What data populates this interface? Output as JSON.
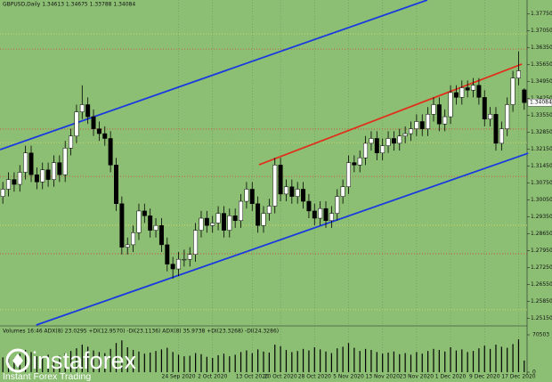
{
  "chart_data": [
    {
      "type": "candlestick",
      "title": "GBPUSD,Daily 1.34613 1.34675 1.33788 1.34084",
      "categories": [
        null,
        null,
        null,
        null,
        null,
        null,
        null,
        null,
        null,
        null,
        null,
        null,
        null,
        null,
        null,
        null,
        null,
        null,
        null,
        null,
        null,
        null,
        null,
        null,
        null,
        null,
        null,
        null,
        null,
        null,
        null,
        "24 Sep 2020",
        null,
        null,
        null,
        null,
        null,
        "2 Oct 2020",
        null,
        null,
        null,
        null,
        null,
        null,
        "13 Oct 2020",
        null,
        null,
        null,
        null,
        "20 Oct 2020",
        null,
        null,
        null,
        null,
        null,
        "28 Oct 2020",
        null,
        null,
        null,
        null,
        null,
        "5 Nov 2020",
        null,
        null,
        null,
        null,
        null,
        "13 Nov 2020",
        null,
        null,
        null,
        null,
        null,
        "23 Nov 2020",
        null,
        null,
        null,
        null,
        null,
        "1 Dec 2020",
        null,
        null,
        null,
        null,
        null,
        "9 Dec 2020",
        null,
        null,
        null,
        null,
        null,
        "17 Dec 2020",
        null
      ],
      "series": [
        {
          "name": "GBPUSD",
          "up_color": "#ffffff",
          "down_color": "#000000",
          "wick_color": "#000000",
          "ohlc": [
            [
              1.302,
              1.308,
              1.299,
              1.305
            ],
            [
              1.305,
              1.312,
              1.302,
              1.309
            ],
            [
              1.309,
              1.312,
              1.304,
              1.307
            ],
            [
              1.307,
              1.315,
              1.304,
              1.312
            ],
            [
              1.312,
              1.323,
              1.309,
              1.32
            ],
            [
              1.32,
              1.323,
              1.308,
              1.311
            ],
            [
              1.311,
              1.314,
              1.305,
              1.308
            ],
            [
              1.308,
              1.316,
              1.305,
              1.313
            ],
            [
              1.313,
              1.316,
              1.306,
              1.309
            ],
            [
              1.309,
              1.319,
              1.306,
              1.316
            ],
            [
              1.316,
              1.319,
              1.308,
              1.311
            ],
            [
              1.311,
              1.325,
              1.308,
              1.322
            ],
            [
              1.322,
              1.33,
              1.319,
              1.327
            ],
            [
              1.327,
              1.34,
              1.324,
              1.337
            ],
            [
              1.337,
              1.348,
              1.334,
              1.34
            ],
            [
              1.34,
              1.343,
              1.332,
              1.335
            ],
            [
              1.335,
              1.338,
              1.327,
              1.33
            ],
            [
              1.33,
              1.333,
              1.325,
              1.328
            ],
            [
              1.328,
              1.331,
              1.323,
              1.326
            ],
            [
              1.326,
              1.329,
              1.312,
              1.315
            ],
            [
              1.315,
              1.318,
              1.296,
              1.299
            ],
            [
              1.299,
              1.302,
              1.278,
              1.281
            ],
            [
              1.281,
              1.285,
              1.278,
              1.282
            ],
            [
              1.282,
              1.29,
              1.279,
              1.287
            ],
            [
              1.287,
              1.299,
              1.284,
              1.296
            ],
            [
              1.296,
              1.299,
              1.291,
              1.294
            ],
            [
              1.294,
              1.297,
              1.285,
              1.288
            ],
            [
              1.288,
              1.293,
              1.285,
              1.29
            ],
            [
              1.29,
              1.293,
              1.279,
              1.282
            ],
            [
              1.282,
              1.285,
              1.271,
              1.274
            ],
            [
              1.274,
              1.277,
              1.268,
              1.272
            ],
            [
              1.272,
              1.279,
              1.269,
              1.276
            ],
            [
              1.276,
              1.28,
              1.273,
              1.276
            ],
            [
              1.276,
              1.281,
              1.273,
              1.278
            ],
            [
              1.278,
              1.291,
              1.275,
              1.288
            ],
            [
              1.288,
              1.296,
              1.285,
              1.293
            ],
            [
              1.293,
              1.296,
              1.287,
              1.29
            ],
            [
              1.29,
              1.294,
              1.287,
              1.291
            ],
            [
              1.291,
              1.298,
              1.288,
              1.295
            ],
            [
              1.295,
              1.298,
              1.285,
              1.288
            ],
            [
              1.288,
              1.297,
              1.285,
              1.294
            ],
            [
              1.294,
              1.297,
              1.289,
              1.292
            ],
            [
              1.292,
              1.303,
              1.289,
              1.3
            ],
            [
              1.3,
              1.308,
              1.297,
              1.305
            ],
            [
              1.305,
              1.308,
              1.296,
              1.299
            ],
            [
              1.299,
              1.302,
              1.287,
              1.29
            ],
            [
              1.29,
              1.298,
              1.287,
              1.295
            ],
            [
              1.295,
              1.301,
              1.292,
              1.298
            ],
            [
              1.298,
              1.318,
              1.295,
              1.315
            ],
            [
              1.315,
              1.318,
              1.3,
              1.303
            ],
            [
              1.303,
              1.309,
              1.3,
              1.306
            ],
            [
              1.306,
              1.309,
              1.299,
              1.302
            ],
            [
              1.302,
              1.308,
              1.299,
              1.305
            ],
            [
              1.305,
              1.308,
              1.297,
              1.3
            ],
            [
              1.3,
              1.303,
              1.293,
              1.296
            ],
            [
              1.296,
              1.299,
              1.29,
              1.293
            ],
            [
              1.293,
              1.3,
              1.29,
              1.297
            ],
            [
              1.297,
              1.3,
              1.289,
              1.292
            ],
            [
              1.292,
              1.298,
              1.289,
              1.295
            ],
            [
              1.295,
              1.305,
              1.292,
              1.302
            ],
            [
              1.302,
              1.309,
              1.299,
              1.306
            ],
            [
              1.306,
              1.319,
              1.303,
              1.316
            ],
            [
              1.316,
              1.319,
              1.312,
              1.315
            ],
            [
              1.315,
              1.321,
              1.312,
              1.318
            ],
            [
              1.318,
              1.327,
              1.315,
              1.324
            ],
            [
              1.324,
              1.329,
              1.321,
              1.326
            ],
            [
              1.326,
              1.329,
              1.317,
              1.32
            ],
            [
              1.32,
              1.326,
              1.317,
              1.323
            ],
            [
              1.323,
              1.329,
              1.32,
              1.326
            ],
            [
              1.326,
              1.329,
              1.321,
              1.324
            ],
            [
              1.324,
              1.33,
              1.321,
              1.327
            ],
            [
              1.327,
              1.331,
              1.324,
              1.328
            ],
            [
              1.328,
              1.333,
              1.325,
              1.33
            ],
            [
              1.33,
              1.336,
              1.327,
              1.333
            ],
            [
              1.333,
              1.336,
              1.327,
              1.33
            ],
            [
              1.33,
              1.339,
              1.327,
              1.336
            ],
            [
              1.336,
              1.343,
              1.333,
              1.34
            ],
            [
              1.34,
              1.343,
              1.329,
              1.332
            ],
            [
              1.332,
              1.338,
              1.329,
              1.335
            ],
            [
              1.335,
              1.348,
              1.332,
              1.345
            ],
            [
              1.345,
              1.348,
              1.34,
              1.343
            ],
            [
              1.343,
              1.35,
              1.34,
              1.347
            ],
            [
              1.347,
              1.35,
              1.343,
              1.346
            ],
            [
              1.346,
              1.351,
              1.343,
              1.348
            ],
            [
              1.348,
              1.351,
              1.34,
              1.343
            ],
            [
              1.343,
              1.346,
              1.331,
              1.334
            ],
            [
              1.334,
              1.339,
              1.331,
              1.336
            ],
            [
              1.336,
              1.339,
              1.321,
              1.324
            ],
            [
              1.324,
              1.333,
              1.321,
              1.33
            ],
            [
              1.33,
              1.343,
              1.327,
              1.34
            ],
            [
              1.34,
              1.354,
              1.337,
              1.351
            ],
            [
              1.351,
              1.362,
              1.348,
              1.354
            ],
            [
              1.34613,
              1.34675,
              1.33788,
              1.34084
            ]
          ]
        }
      ],
      "ylim": [
        1.2488,
        1.3833
      ],
      "yticks": [
        {
          "value": 1.2515,
          "label": "1.25150"
        },
        {
          "value": 1.2585,
          "label": "1.25850"
        },
        {
          "value": 1.2655,
          "label": "1.26550"
        },
        {
          "value": 1.2725,
          "label": "1.27250"
        },
        {
          "value": 1.2795,
          "label": "1.27950"
        },
        {
          "value": 1.2865,
          "label": "1.28650"
        },
        {
          "value": 1.2935,
          "label": "1.29350"
        },
        {
          "value": 1.3005,
          "label": "1.30050"
        },
        {
          "value": 1.3075,
          "label": "1.30750"
        },
        {
          "value": 1.3145,
          "label": "1.31450"
        },
        {
          "value": 1.3215,
          "label": "1.32150"
        },
        {
          "value": 1.3285,
          "label": "1.32850"
        },
        {
          "value": 1.3355,
          "label": "1.33550"
        },
        {
          "value": 1.3425,
          "label": "1.34250"
        },
        {
          "value": 1.3495,
          "label": "1.34950"
        },
        {
          "value": 1.3565,
          "label": "1.35650"
        },
        {
          "value": 1.3635,
          "label": "1.36350"
        },
        {
          "value": 1.3705,
          "label": "1.37050"
        },
        {
          "value": 1.3775,
          "label": "1.37750"
        }
      ],
      "last_price": {
        "value": 1.34084,
        "label": "1.34084"
      },
      "levels": [
        {
          "value": 1.3693,
          "color": "#e8e060"
        },
        {
          "value": 1.363,
          "color": "#d04030"
        },
        {
          "value": 1.3299,
          "color": "#d04030"
        },
        {
          "value": 1.3243,
          "color": "#e8e060"
        },
        {
          "value": 1.3103,
          "color": "#d04030"
        },
        {
          "value": 1.2901,
          "color": "#e8e060"
        },
        {
          "value": 1.2783,
          "color": "#d04030"
        },
        {
          "value": 1.2551,
          "color": "#e8e060"
        }
      ],
      "trendlines": [
        {
          "color": "#1a3adf",
          "x": [
            -0.48,
            74.9
          ],
          "y": [
            1.3214,
            1.3833
          ]
        },
        {
          "color": "#1a3adf",
          "x": [
            5.9,
            92.7
          ],
          "y": [
            1.2488,
            1.3199
          ]
        },
        {
          "color": "#e0301c",
          "x": [
            45.2,
            91.6
          ],
          "y": [
            1.3151,
            1.3568
          ]
        }
      ]
    },
    {
      "type": "bar",
      "title": "Volumes 16:46  ADX(8) 23.0295 +DI(12.9570) -DI(23.1136)  ADX(8) 35.9738 +DI(23.3268) -DI(24.3286)",
      "color": "#000000",
      "values": [
        28000,
        31000,
        26000,
        35000,
        42000,
        38000,
        30000,
        27000,
        33000,
        29000,
        31000,
        36000,
        40000,
        45000,
        52000,
        48000,
        41000,
        38000,
        36000,
        44000,
        55000,
        60000,
        47000,
        42000,
        39000,
        35000,
        37000,
        40000,
        43000,
        46000,
        38000,
        33000,
        30000,
        31000,
        36000,
        34000,
        29000,
        27000,
        32000,
        35000,
        30000,
        33000,
        38000,
        41000,
        36000,
        43000,
        39000,
        37000,
        52000,
        49000,
        42000,
        38000,
        40000,
        44000,
        41000,
        47000,
        43000,
        39000,
        36000,
        45000,
        48000,
        55000,
        46000,
        40000,
        44000,
        42000,
        38000,
        35000,
        37000,
        39000,
        34000,
        36000,
        33000,
        38000,
        35000,
        40000,
        44000,
        42000,
        39000,
        47000,
        41000,
        43000,
        38000,
        40000,
        45000,
        50000,
        44000,
        52000,
        48000,
        46000,
        53000,
        62000,
        22000
      ],
      "ylim": [
        0,
        70503
      ],
      "yticks": [
        0,
        70503
      ]
    }
  ],
  "watermark": {
    "brand": "instaforex",
    "tagline": "Instant Forex Trading"
  }
}
